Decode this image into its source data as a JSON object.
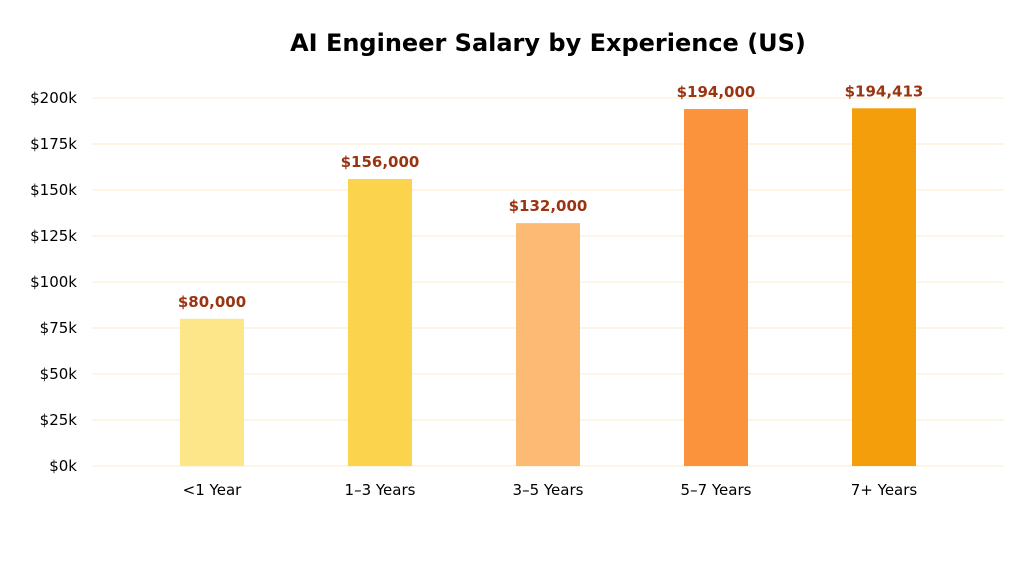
{
  "chart_data": {
    "type": "bar",
    "title": "AI Engineer Salary by Experience (US)",
    "xlabel": "",
    "ylabel": "",
    "categories": [
      "<1 Year",
      "1–3 Years",
      "3–5 Years",
      "5–7 Years",
      "7+ Years"
    ],
    "values": [
      80000,
      156000,
      132000,
      194000,
      194413
    ],
    "data_labels": [
      "$80,000",
      "$156,000",
      "$132,000",
      "$194,000",
      "$194,413"
    ],
    "bar_colors": [
      "#FDE68A",
      "#FCD34D",
      "#FDBA74",
      "#FB923C",
      "#F59E0B"
    ],
    "ylim": [
      0,
      200000
    ],
    "yticks": [
      0,
      25000,
      50000,
      75000,
      100000,
      125000,
      150000,
      175000,
      200000
    ],
    "ytick_labels": [
      "$0k",
      "$25k",
      "$50k",
      "$75k",
      "$100k",
      "$125k",
      "$150k",
      "$175k",
      "$200k"
    ],
    "grid": true,
    "grid_color": "#FDF0D5",
    "data_label_color": "#9A3412",
    "legend": "none"
  }
}
